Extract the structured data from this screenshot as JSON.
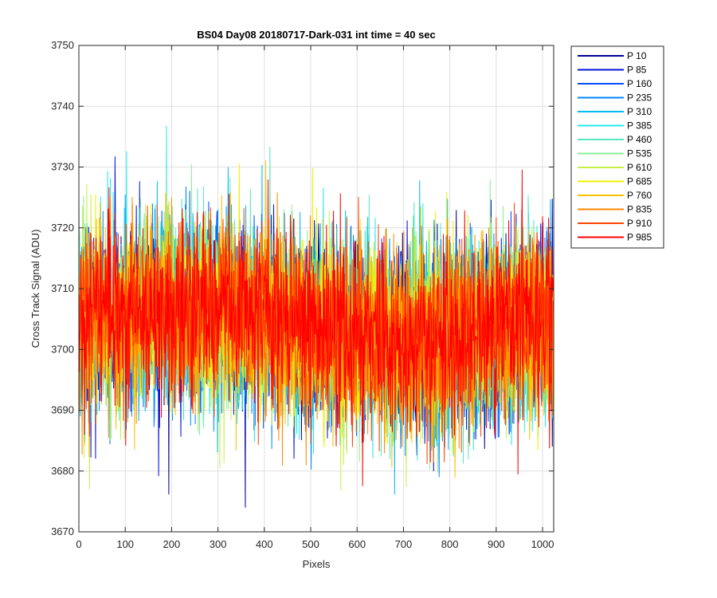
{
  "chart_data": {
    "type": "line",
    "title": "BS04 Day08 20180717-Dark-031 int time = 40 sec",
    "xlabel": "Pixels",
    "ylabel": "Cross Track Signal (ADU)",
    "xlim": [
      0,
      1024
    ],
    "ylim": [
      3670,
      3750
    ],
    "xticks": [
      0,
      100,
      200,
      300,
      400,
      500,
      600,
      700,
      800,
      900,
      1000
    ],
    "yticks": [
      3670,
      3680,
      3690,
      3700,
      3710,
      3720,
      3730,
      3740,
      3750
    ],
    "grid": true,
    "legend_position": "outside-top-right",
    "points_per_series": 1024,
    "series": [
      {
        "name": "P 10",
        "color": "#00008f",
        "mean": 3704,
        "sigma": 7.5
      },
      {
        "name": "P 85",
        "color": "#0011dd",
        "mean": 3704,
        "sigma": 7.5
      },
      {
        "name": "P 160",
        "color": "#0050ff",
        "mean": 3704,
        "sigma": 7.5
      },
      {
        "name": "P 235",
        "color": "#0088ff",
        "mean": 3704,
        "sigma": 7.5
      },
      {
        "name": "P 310",
        "color": "#00bbee",
        "mean": 3704,
        "sigma": 7.5
      },
      {
        "name": "P 385",
        "color": "#22e8e8",
        "mean": 3704,
        "sigma": 7.5
      },
      {
        "name": "P 460",
        "color": "#55e8c4",
        "mean": 3704,
        "sigma": 7.5
      },
      {
        "name": "P 535",
        "color": "#88f099",
        "mean": 3704,
        "sigma": 7.5
      },
      {
        "name": "P 610",
        "color": "#c4f044",
        "mean": 3704,
        "sigma": 7.5
      },
      {
        "name": "P 685",
        "color": "#f0f000",
        "mean": 3704,
        "sigma": 7.5
      },
      {
        "name": "P 760",
        "color": "#ffc000",
        "mean": 3704,
        "sigma": 7.5
      },
      {
        "name": "P 835",
        "color": "#ff8800",
        "mean": 3704,
        "sigma": 7.5
      },
      {
        "name": "P 910",
        "color": "#ff4400",
        "mean": 3704,
        "sigma": 7.5
      },
      {
        "name": "P 985",
        "color": "#ff0000",
        "mean": 3704,
        "sigma": 7.5
      }
    ]
  }
}
